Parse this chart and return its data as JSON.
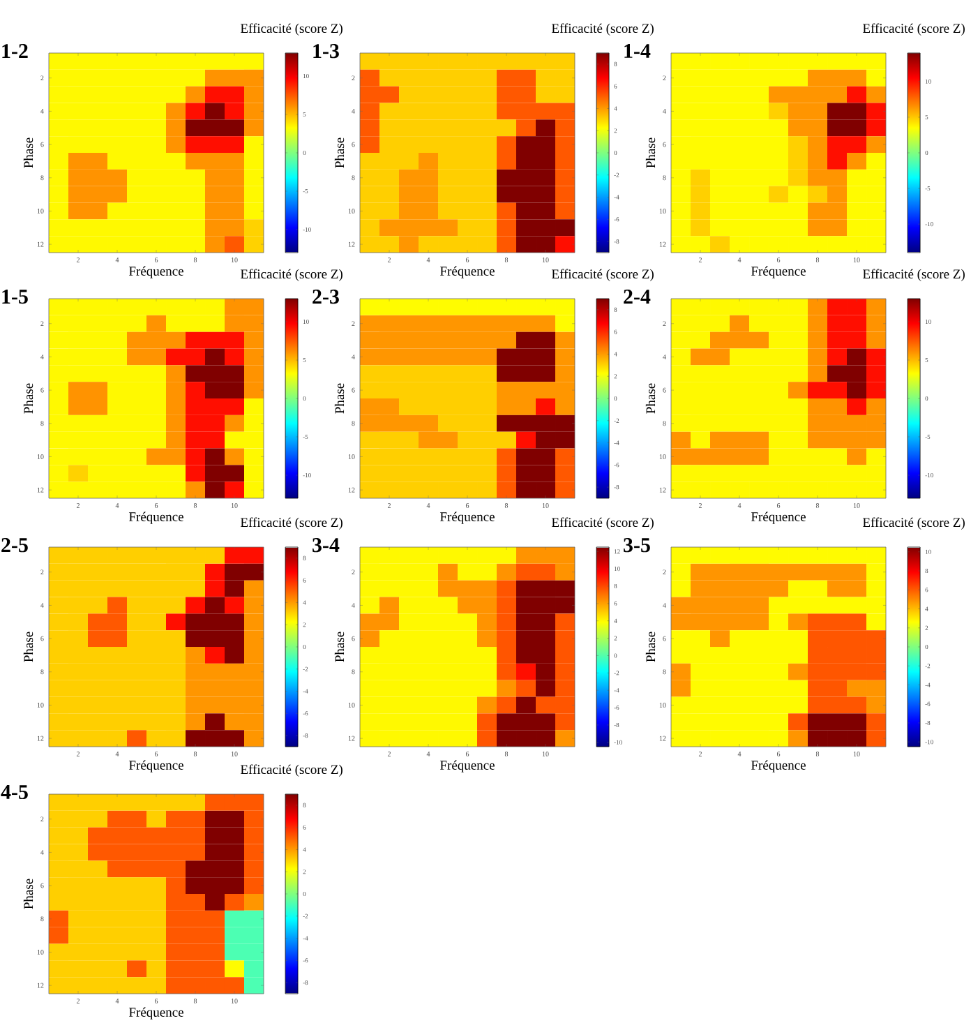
{
  "chart_data": [
    {
      "type": "heatmap",
      "title": "1-2",
      "xlabel": "Fréquence",
      "ylabel": "Phase",
      "clabel": "Efficacité (score Z)",
      "categories": [
        null,
        "2",
        null,
        "4",
        null,
        "6",
        null,
        "8",
        null,
        "10",
        null
      ],
      "y_categories": [
        null,
        "2",
        null,
        "4",
        null,
        "6",
        null,
        "8",
        null,
        "10",
        null,
        "12"
      ],
      "clim": [
        -13,
        13
      ],
      "cticks": [
        -10,
        -5,
        0,
        5,
        10
      ],
      "cells": [
        [
          3.4,
          3.4,
          3.4,
          3.4,
          3.4,
          3.4,
          3.4,
          3.4,
          3.4,
          3.4,
          3.4
        ],
        [
          3.4,
          3.4,
          3.4,
          3.4,
          3.4,
          3.4,
          3.4,
          3.4,
          6,
          6,
          6
        ],
        [
          3.4,
          3.4,
          3.4,
          3.4,
          3.4,
          3.4,
          3.4,
          6,
          9.4,
          9.4,
          6
        ],
        [
          3.4,
          3.4,
          3.4,
          3.4,
          3.4,
          3.4,
          6,
          9.4,
          13,
          9.4,
          6
        ],
        [
          3.4,
          3.4,
          3.4,
          3.4,
          3.4,
          3.4,
          6,
          13,
          13,
          13,
          6
        ],
        [
          3.4,
          3.4,
          3.4,
          3.4,
          3.4,
          3.4,
          6,
          9.4,
          9.4,
          9.4,
          3.4
        ],
        [
          3.4,
          6,
          6,
          3.4,
          3.4,
          3.4,
          3.4,
          6,
          6,
          6,
          3.4
        ],
        [
          3.4,
          6,
          6,
          6,
          3.4,
          3.4,
          3.4,
          3.4,
          6,
          6,
          3.4
        ],
        [
          3.4,
          6,
          6,
          6,
          3.4,
          3.4,
          3.4,
          3.4,
          6,
          6,
          3.4
        ],
        [
          3.4,
          6,
          6,
          3.4,
          3.4,
          3.4,
          3.4,
          3.4,
          6,
          6,
          3.4
        ],
        [
          3.4,
          3.4,
          3.4,
          3.4,
          3.4,
          3.4,
          3.4,
          3.4,
          6,
          6,
          4.4
        ],
        [
          3.4,
          3.4,
          3.4,
          3.4,
          3.4,
          3.4,
          3.4,
          3.4,
          6,
          7.5,
          4.4
        ]
      ]
    },
    {
      "type": "heatmap",
      "title": "1-3",
      "xlabel": "Fréquence",
      "ylabel": "Phase",
      "clabel": "Efficacité (score Z)",
      "categories": [
        null,
        "2",
        null,
        "4",
        null,
        "6",
        null,
        "8",
        null,
        "10",
        null
      ],
      "y_categories": [
        null,
        "2",
        null,
        "4",
        null,
        "6",
        null,
        "8",
        null,
        "10",
        null,
        "12"
      ],
      "clim": [
        -9,
        9
      ],
      "cticks": [
        -8,
        -6,
        -4,
        -2,
        0,
        2,
        4,
        6,
        8
      ],
      "cells": [
        [
          3.1,
          3.1,
          3.1,
          3.1,
          3.1,
          3.1,
          3.1,
          3.1,
          3.1,
          3.1,
          3.1
        ],
        [
          5.2,
          3.1,
          3.1,
          3.1,
          3.1,
          3.1,
          3.1,
          5.2,
          5.2,
          3.1,
          3.1
        ],
        [
          5.2,
          5.2,
          3.1,
          3.1,
          3.1,
          3.1,
          3.1,
          5.2,
          5.2,
          3.1,
          3.1
        ],
        [
          5.2,
          3.1,
          3.1,
          3.1,
          3.1,
          3.1,
          3.1,
          5.2,
          5.2,
          5.2,
          5.2
        ],
        [
          5.2,
          3.1,
          3.1,
          3.1,
          3.1,
          3.1,
          3.1,
          3.1,
          5.2,
          9,
          5.2
        ],
        [
          5.2,
          3.1,
          3.1,
          3.1,
          3.1,
          3.1,
          3.1,
          5.2,
          9,
          9,
          5.2
        ],
        [
          3.1,
          3.1,
          3.1,
          4.1,
          3.1,
          3.1,
          3.1,
          5.2,
          9,
          9,
          5.2
        ],
        [
          3.1,
          3.1,
          4.1,
          4.1,
          3.1,
          3.1,
          3.1,
          9,
          9,
          9,
          5.2
        ],
        [
          3.1,
          3.1,
          4.1,
          4.1,
          3.1,
          3.1,
          3.1,
          9,
          9,
          9,
          5.2
        ],
        [
          3.1,
          3.1,
          4.1,
          4.1,
          3.1,
          3.1,
          3.1,
          5.2,
          9,
          9,
          5.2
        ],
        [
          3.1,
          4.1,
          4.1,
          4.1,
          4.1,
          3.1,
          3.1,
          5.2,
          9,
          9,
          9
        ],
        [
          3.1,
          3.1,
          4.1,
          3.1,
          3.1,
          3.1,
          3.1,
          5.2,
          9,
          9,
          6.5
        ]
      ]
    },
    {
      "type": "heatmap",
      "title": "1-4",
      "xlabel": "Fréquence",
      "ylabel": "Phase",
      "clabel": "Efficacité (score Z)",
      "categories": [
        null,
        "2",
        null,
        "4",
        null,
        "6",
        null,
        "8",
        null,
        "10",
        null
      ],
      "y_categories": [
        null,
        "2",
        null,
        "4",
        null,
        "6",
        null,
        "8",
        null,
        "10",
        null,
        "12"
      ],
      "clim": [
        -14,
        14
      ],
      "cticks": [
        -10,
        -5,
        0,
        5,
        10
      ],
      "cells": [
        [
          3.6,
          3.6,
          3.6,
          3.6,
          3.6,
          3.6,
          3.6,
          3.6,
          3.6,
          3.6,
          3.6
        ],
        [
          3.6,
          3.6,
          3.6,
          3.6,
          3.6,
          3.6,
          3.6,
          6.4,
          6.4,
          6.4,
          3.6
        ],
        [
          3.6,
          3.6,
          3.6,
          3.6,
          3.6,
          6.4,
          6.4,
          6.4,
          6.4,
          10.1,
          6.4
        ],
        [
          3.6,
          3.6,
          3.6,
          3.6,
          3.6,
          4.8,
          6.4,
          6.4,
          14,
          14,
          10.1
        ],
        [
          3.6,
          3.6,
          3.6,
          3.6,
          3.6,
          3.6,
          6.4,
          6.4,
          14,
          14,
          10.1
        ],
        [
          3.6,
          3.6,
          3.6,
          3.6,
          3.6,
          3.6,
          4.8,
          6.4,
          10.1,
          10.1,
          6.4
        ],
        [
          3.6,
          3.6,
          3.6,
          3.6,
          3.6,
          3.6,
          4.8,
          6.4,
          10.1,
          6.4,
          3.6
        ],
        [
          3.6,
          4.8,
          3.6,
          3.6,
          3.6,
          3.6,
          4.8,
          6.4,
          6.4,
          3.6,
          3.6
        ],
        [
          3.6,
          4.8,
          3.6,
          3.6,
          3.6,
          4.8,
          3.6,
          4.8,
          6.4,
          3.6,
          3.6
        ],
        [
          3.6,
          4.8,
          3.6,
          3.6,
          3.6,
          3.6,
          3.6,
          6.4,
          6.4,
          3.6,
          3.6
        ],
        [
          3.6,
          4.8,
          3.6,
          3.6,
          3.6,
          3.6,
          3.6,
          6.4,
          6.4,
          3.6,
          3.6
        ],
        [
          3.6,
          3.6,
          4.8,
          3.6,
          3.6,
          3.6,
          3.6,
          3.6,
          3.6,
          3.6,
          3.6
        ]
      ]
    },
    {
      "type": "heatmap",
      "title": "1-5",
      "xlabel": "Fréquence",
      "ylabel": "Phase",
      "clabel": "Efficacité (score Z)",
      "categories": [
        null,
        "2",
        null,
        "4",
        null,
        "6",
        null,
        "8",
        null,
        "10",
        null
      ],
      "y_categories": [
        null,
        "2",
        null,
        "4",
        null,
        "6",
        null,
        "8",
        null,
        "10",
        null,
        "12"
      ],
      "clim": [
        -13,
        13
      ],
      "cticks": [
        -10,
        -5,
        0,
        5,
        10
      ],
      "cells": [
        [
          3.4,
          3.4,
          3.4,
          3.4,
          3.4,
          3.4,
          3.4,
          3.4,
          3.4,
          6,
          6
        ],
        [
          3.4,
          3.4,
          3.4,
          3.4,
          3.4,
          6,
          3.4,
          3.4,
          3.4,
          6,
          6
        ],
        [
          3.4,
          3.4,
          3.4,
          3.4,
          6,
          6,
          6,
          9.4,
          9.4,
          9.4,
          6
        ],
        [
          3.4,
          3.4,
          3.4,
          3.4,
          6,
          6,
          9.4,
          9.4,
          13,
          9.4,
          6
        ],
        [
          3.4,
          3.4,
          3.4,
          3.4,
          3.4,
          3.4,
          6,
          13,
          13,
          13,
          6
        ],
        [
          3.4,
          6,
          6,
          3.4,
          3.4,
          3.4,
          6,
          9.4,
          13,
          13,
          6
        ],
        [
          3.4,
          6,
          6,
          3.4,
          3.4,
          3.4,
          6,
          9.4,
          9.4,
          9.4,
          3.4
        ],
        [
          3.4,
          3.4,
          3.4,
          3.4,
          3.4,
          3.4,
          6,
          9.4,
          9.4,
          6,
          3.4
        ],
        [
          3.4,
          3.4,
          3.4,
          3.4,
          3.4,
          3.4,
          6,
          9.4,
          9.4,
          3.4,
          3.4
        ],
        [
          3.4,
          3.4,
          3.4,
          3.4,
          3.4,
          6,
          6,
          9.4,
          13,
          6,
          3.4
        ],
        [
          3.4,
          4.4,
          3.4,
          3.4,
          3.4,
          3.4,
          3.4,
          9.4,
          13,
          13,
          3.4
        ],
        [
          3.4,
          3.4,
          3.4,
          3.4,
          3.4,
          3.4,
          3.4,
          6,
          13,
          9.4,
          3.4
        ]
      ]
    },
    {
      "type": "heatmap",
      "title": "2-3",
      "xlabel": "Fréquence",
      "ylabel": "Phase",
      "clabel": "Efficacité (score Z)",
      "categories": [
        null,
        "2",
        null,
        "4",
        null,
        "6",
        null,
        "8",
        null,
        "10",
        null
      ],
      "y_categories": [
        null,
        "2",
        null,
        "4",
        null,
        "6",
        null,
        "8",
        null,
        "10",
        null,
        "12"
      ],
      "clim": [
        -9,
        9
      ],
      "cticks": [
        -8,
        -6,
        -4,
        -2,
        0,
        2,
        4,
        6,
        8
      ],
      "cells": [
        [
          2.3,
          2.3,
          2.3,
          2.3,
          2.3,
          2.3,
          2.3,
          2.3,
          2.3,
          2.3,
          2.3
        ],
        [
          4.1,
          4.1,
          4.1,
          4.1,
          4.1,
          4.1,
          4.1,
          4.1,
          4.1,
          4.1,
          2.3
        ],
        [
          4.1,
          4.1,
          4.1,
          4.1,
          4.1,
          4.1,
          4.1,
          4.1,
          9,
          9,
          4.1
        ],
        [
          4.1,
          4.1,
          4.1,
          4.1,
          4.1,
          4.1,
          4.1,
          9,
          9,
          9,
          4.1
        ],
        [
          3.1,
          3.1,
          3.1,
          3.1,
          3.1,
          3.1,
          3.1,
          9,
          9,
          9,
          4.1
        ],
        [
          3.1,
          3.1,
          3.1,
          3.1,
          3.1,
          3.1,
          3.1,
          4.1,
          4.1,
          4.1,
          4.1
        ],
        [
          4.1,
          4.1,
          3.1,
          3.1,
          3.1,
          3.1,
          3.1,
          4.1,
          4.1,
          6.5,
          4.1
        ],
        [
          4.1,
          4.1,
          4.1,
          4.1,
          3.1,
          3.1,
          3.1,
          9,
          9,
          9,
          9
        ],
        [
          3.1,
          3.1,
          3.1,
          4.1,
          4.1,
          3.1,
          3.1,
          3.1,
          6.5,
          9,
          9
        ],
        [
          3.1,
          3.1,
          3.1,
          3.1,
          3.1,
          3.1,
          3.1,
          5.2,
          9,
          9,
          5.2
        ],
        [
          3.1,
          3.1,
          3.1,
          3.1,
          3.1,
          3.1,
          3.1,
          5.2,
          9,
          9,
          5.2
        ],
        [
          3.1,
          3.1,
          3.1,
          3.1,
          3.1,
          3.1,
          3.1,
          5.2,
          9,
          9,
          5.2
        ]
      ]
    },
    {
      "type": "heatmap",
      "title": "2-4",
      "xlabel": "Fréquence",
      "ylabel": "Phase",
      "clabel": "Efficacité (score Z)",
      "categories": [
        null,
        "2",
        null,
        "4",
        null,
        "6",
        null,
        "8",
        null,
        "10",
        null
      ],
      "y_categories": [
        null,
        "2",
        null,
        "4",
        null,
        "6",
        null,
        "8",
        null,
        "10",
        null,
        "12"
      ],
      "clim": [
        -13,
        13
      ],
      "cticks": [
        -10,
        -5,
        0,
        5,
        10
      ],
      "cells": [
        [
          3.4,
          3.4,
          3.4,
          3.4,
          3.4,
          3.4,
          3.4,
          6,
          9.4,
          9.4,
          6
        ],
        [
          3.4,
          3.4,
          3.4,
          6,
          3.4,
          3.4,
          3.4,
          6,
          9.4,
          9.4,
          6
        ],
        [
          3.4,
          3.4,
          6,
          6,
          6,
          3.4,
          3.4,
          6,
          9.4,
          9.4,
          6
        ],
        [
          3.4,
          6,
          6,
          3.4,
          3.4,
          3.4,
          3.4,
          6,
          9.4,
          13,
          9.4
        ],
        [
          3.4,
          3.4,
          3.4,
          3.4,
          3.4,
          3.4,
          3.4,
          6,
          13,
          13,
          9.4
        ],
        [
          3.4,
          3.4,
          3.4,
          3.4,
          3.4,
          3.4,
          6,
          9.4,
          9.4,
          13,
          9.4
        ],
        [
          3.4,
          3.4,
          3.4,
          3.4,
          3.4,
          3.4,
          3.4,
          6,
          6,
          9.4,
          6
        ],
        [
          3.4,
          3.4,
          3.4,
          3.4,
          3.4,
          3.4,
          3.4,
          6,
          6,
          6,
          6
        ],
        [
          6,
          3.4,
          6,
          6,
          6,
          3.4,
          3.4,
          6,
          6,
          6,
          6
        ],
        [
          6,
          6,
          6,
          6,
          6,
          3.4,
          3.4,
          3.4,
          3.4,
          6,
          3.4
        ],
        [
          3.4,
          3.4,
          3.4,
          3.4,
          3.4,
          3.4,
          3.4,
          3.4,
          3.4,
          3.4,
          3.4
        ],
        [
          3.4,
          3.4,
          3.4,
          3.4,
          3.4,
          3.4,
          3.4,
          3.4,
          3.4,
          3.4,
          3.4
        ]
      ]
    },
    {
      "type": "heatmap",
      "title": "2-5",
      "xlabel": "Fréquence",
      "ylabel": "Phase",
      "clabel": "Efficacité (score Z)",
      "categories": [
        null,
        "2",
        null,
        "4",
        null,
        "6",
        null,
        "8",
        null,
        "10",
        null
      ],
      "y_categories": [
        null,
        "2",
        null,
        "4",
        null,
        "6",
        null,
        "8",
        null,
        "10",
        null,
        "12"
      ],
      "clim": [
        -9,
        9
      ],
      "cticks": [
        -8,
        -6,
        -4,
        -2,
        0,
        2,
        4,
        6,
        8
      ],
      "cells": [
        [
          3.1,
          3.1,
          3.1,
          3.1,
          3.1,
          3.1,
          3.1,
          3.1,
          3.1,
          6.5,
          6.5
        ],
        [
          3.1,
          3.1,
          3.1,
          3.1,
          3.1,
          3.1,
          3.1,
          3.1,
          6.5,
          9,
          9
        ],
        [
          3.1,
          3.1,
          3.1,
          3.1,
          3.1,
          3.1,
          3.1,
          3.1,
          6.5,
          9,
          4.1
        ],
        [
          3.1,
          3.1,
          3.1,
          5.2,
          3.1,
          3.1,
          3.1,
          6.5,
          9,
          6.5,
          4.1
        ],
        [
          3.1,
          3.1,
          5.2,
          5.2,
          3.1,
          3.1,
          6.5,
          9,
          9,
          9,
          4.1
        ],
        [
          3.1,
          3.1,
          5.2,
          5.2,
          3.1,
          3.1,
          3.1,
          9,
          9,
          9,
          4.1
        ],
        [
          3.1,
          3.1,
          3.1,
          3.1,
          3.1,
          3.1,
          3.1,
          4.1,
          6.5,
          9,
          4.1
        ],
        [
          3.1,
          3.1,
          3.1,
          3.1,
          3.1,
          3.1,
          3.1,
          4.1,
          4.1,
          4.1,
          4.1
        ],
        [
          3.1,
          3.1,
          3.1,
          3.1,
          3.1,
          3.1,
          3.1,
          4.1,
          4.1,
          4.1,
          4.1
        ],
        [
          3.1,
          3.1,
          3.1,
          3.1,
          3.1,
          3.1,
          3.1,
          4.1,
          4.1,
          4.1,
          4.1
        ],
        [
          3.1,
          3.1,
          3.1,
          3.1,
          3.1,
          3.1,
          3.1,
          4.1,
          9,
          4.1,
          4.1
        ],
        [
          3.1,
          3.1,
          3.1,
          3.1,
          5.2,
          3.1,
          3.1,
          9,
          9,
          9,
          4.1
        ]
      ]
    },
    {
      "type": "heatmap",
      "title": "3-4",
      "xlabel": "Fréquence",
      "ylabel": "Phase",
      "clabel": "Efficacité (score Z)",
      "categories": [
        null,
        "2",
        null,
        "4",
        null,
        "6",
        null,
        "8",
        null,
        "10",
        null
      ],
      "y_categories": [
        null,
        "2",
        null,
        "4",
        null,
        "6",
        null,
        "8",
        null,
        "10",
        null,
        "12"
      ],
      "clim": [
        -10.5,
        12.5
      ],
      "cticks": [
        -10,
        -8,
        -6,
        -4,
        -2,
        0,
        2,
        4,
        6,
        8,
        10,
        12
      ],
      "cells": [
        [
          4.0,
          4.0,
          4.0,
          4.0,
          4.0,
          4.0,
          4.0,
          4.0,
          6.3,
          6.3,
          6.3
        ],
        [
          4.0,
          4.0,
          4.0,
          4.0,
          6.3,
          4.0,
          4.0,
          6.3,
          7.7,
          7.7,
          6.3
        ],
        [
          4.0,
          4.0,
          4.0,
          4.0,
          6.3,
          6.3,
          6.3,
          7.7,
          12.5,
          12.5,
          12.5
        ],
        [
          4.0,
          6.3,
          4.0,
          4.0,
          4.0,
          6.3,
          6.3,
          7.7,
          12.5,
          12.5,
          12.5
        ],
        [
          6.3,
          6.3,
          4.0,
          4.0,
          4.0,
          4.0,
          6.3,
          7.7,
          12.5,
          12.5,
          7.7
        ],
        [
          6.3,
          4.0,
          4.0,
          4.0,
          4.0,
          4.0,
          6.3,
          7.7,
          12.5,
          12.5,
          7.7
        ],
        [
          4.0,
          4.0,
          4.0,
          4.0,
          4.0,
          4.0,
          4.0,
          7.7,
          12.5,
          12.5,
          7.7
        ],
        [
          4.0,
          4.0,
          4.0,
          4.0,
          4.0,
          4.0,
          4.0,
          7.7,
          9.3,
          12.5,
          7.7
        ],
        [
          4.0,
          4.0,
          4.0,
          4.0,
          4.0,
          4.0,
          4.0,
          6.3,
          7.7,
          12.5,
          7.7
        ],
        [
          4.0,
          4.0,
          4.0,
          4.0,
          4.0,
          4.0,
          6.3,
          7.7,
          12.5,
          7.7,
          7.7
        ],
        [
          4.0,
          4.0,
          4.0,
          4.0,
          4.0,
          4.0,
          7.7,
          12.5,
          12.5,
          12.5,
          7.7
        ],
        [
          4.0,
          4.0,
          4.0,
          4.0,
          4.0,
          4.0,
          7.7,
          12.5,
          12.5,
          12.5,
          6.3
        ]
      ]
    },
    {
      "type": "heatmap",
      "title": "3-5",
      "xlabel": "Fréquence",
      "ylabel": "Phase",
      "clabel": "Efficacité (score Z)",
      "categories": [
        null,
        "2",
        null,
        "4",
        null,
        "6",
        null,
        "8",
        null,
        "10",
        null
      ],
      "y_categories": [
        null,
        "2",
        null,
        "4",
        null,
        "6",
        null,
        "8",
        null,
        "10",
        null,
        "12"
      ],
      "clim": [
        -10.5,
        10.5
      ],
      "cticks": [
        -10,
        -8,
        -6,
        -4,
        -2,
        0,
        2,
        4,
        6,
        8,
        10
      ],
      "cells": [
        [
          2.7,
          2.7,
          2.7,
          2.7,
          2.7,
          2.7,
          2.7,
          2.7,
          2.7,
          2.7,
          2.7
        ],
        [
          2.7,
          4.8,
          4.8,
          4.8,
          4.8,
          4.8,
          4.8,
          4.8,
          4.8,
          4.8,
          2.7
        ],
        [
          2.7,
          4.8,
          4.8,
          4.8,
          4.8,
          4.8,
          2.7,
          2.7,
          4.8,
          4.8,
          2.7
        ],
        [
          4.8,
          4.8,
          4.8,
          4.8,
          4.8,
          2.7,
          2.7,
          2.7,
          2.7,
          2.7,
          2.7
        ],
        [
          4.8,
          4.8,
          4.8,
          4.8,
          4.8,
          2.7,
          4.8,
          6.1,
          6.1,
          6.1,
          2.7
        ],
        [
          2.7,
          2.7,
          4.8,
          2.7,
          2.7,
          2.7,
          2.7,
          6.1,
          6.1,
          6.1,
          6.1
        ],
        [
          2.7,
          2.7,
          2.7,
          2.7,
          2.7,
          2.7,
          2.7,
          6.1,
          6.1,
          6.1,
          6.1
        ],
        [
          4.8,
          2.7,
          2.7,
          2.7,
          2.7,
          2.7,
          4.8,
          6.1,
          6.1,
          6.1,
          6.1
        ],
        [
          4.8,
          2.7,
          2.7,
          2.7,
          2.7,
          2.7,
          2.7,
          6.1,
          6.1,
          4.8,
          4.8
        ],
        [
          2.7,
          2.7,
          2.7,
          2.7,
          2.7,
          2.7,
          2.7,
          6.1,
          6.1,
          6.1,
          4.8
        ],
        [
          2.7,
          2.7,
          2.7,
          2.7,
          2.7,
          2.7,
          6.1,
          10.5,
          10.5,
          10.5,
          6.1
        ],
        [
          2.7,
          2.7,
          2.7,
          2.7,
          2.7,
          2.7,
          4.8,
          10.5,
          10.5,
          10.5,
          6.1
        ]
      ]
    },
    {
      "type": "heatmap",
      "title": "4-5",
      "xlabel": "Fréquence",
      "ylabel": "Phase",
      "clabel": "Efficacité (score Z)",
      "categories": [
        null,
        "2",
        null,
        "4",
        null,
        "6",
        null,
        "8",
        null,
        "10",
        null
      ],
      "y_categories": [
        null,
        "2",
        null,
        "4",
        null,
        "6",
        null,
        "8",
        null,
        "10",
        null,
        "12"
      ],
      "clim": [
        -9,
        9
      ],
      "cticks": [
        -8,
        -6,
        -4,
        -2,
        0,
        2,
        4,
        6,
        8
      ],
      "cells": [
        [
          3.1,
          3.1,
          3.1,
          3.1,
          3.1,
          3.1,
          3.1,
          3.1,
          5.2,
          5.2,
          5.2
        ],
        [
          3.1,
          3.1,
          3.1,
          5.2,
          5.2,
          3.1,
          5.2,
          5.2,
          9,
          9,
          5.2
        ],
        [
          3.1,
          3.1,
          5.2,
          5.2,
          5.2,
          5.2,
          5.2,
          5.2,
          9,
          9,
          5.2
        ],
        [
          3.1,
          3.1,
          5.2,
          5.2,
          5.2,
          5.2,
          5.2,
          5.2,
          9,
          9,
          5.2
        ],
        [
          3.1,
          3.1,
          3.1,
          5.2,
          5.2,
          5.2,
          5.2,
          9,
          9,
          9,
          5.2
        ],
        [
          3.1,
          3.1,
          3.1,
          3.1,
          3.1,
          3.1,
          5.2,
          9,
          9,
          9,
          5.2
        ],
        [
          3.1,
          3.1,
          3.1,
          3.1,
          3.1,
          3.1,
          5.2,
          5.2,
          9,
          5.2,
          4.1
        ],
        [
          5.2,
          3.1,
          3.1,
          3.1,
          3.1,
          3.1,
          5.2,
          5.2,
          5.2,
          -0.9,
          -0.9
        ],
        [
          5.2,
          3.1,
          3.1,
          3.1,
          3.1,
          3.1,
          5.2,
          5.2,
          5.2,
          -0.9,
          -0.9
        ],
        [
          3.1,
          3.1,
          3.1,
          3.1,
          3.1,
          3.1,
          5.2,
          5.2,
          5.2,
          -0.9,
          -0.9
        ],
        [
          3.1,
          3.1,
          3.1,
          3.1,
          5.2,
          3.1,
          5.2,
          5.2,
          5.2,
          2.3,
          -0.9
        ],
        [
          3.1,
          3.1,
          3.1,
          3.1,
          3.1,
          3.1,
          5.2,
          5.2,
          5.2,
          5.2,
          -0.9
        ]
      ]
    }
  ]
}
